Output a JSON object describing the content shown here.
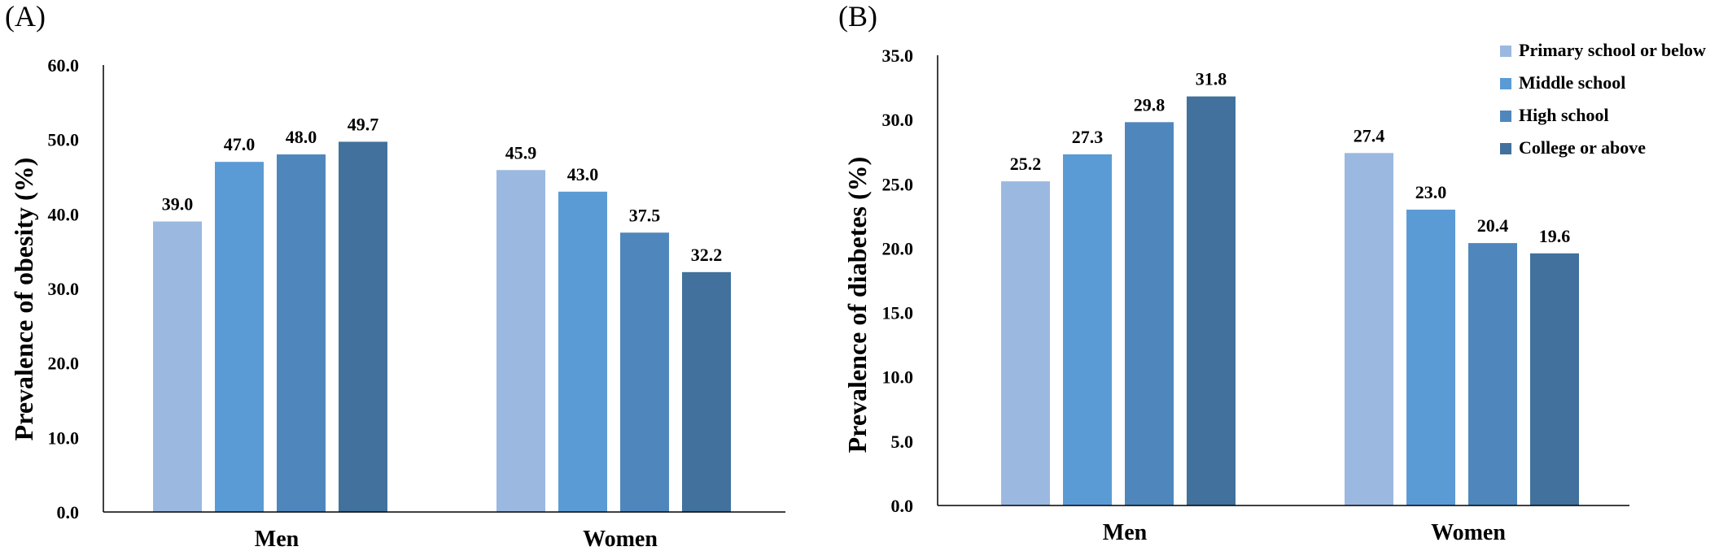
{
  "chart_data": [
    {
      "type": "bar",
      "panel_label": "(A)",
      "ylabel": "Prevalence of obesity (%)",
      "ylim": [
        0,
        60
      ],
      "yticks": [
        "0.0",
        "10.0",
        "20.0",
        "30.0",
        "40.0",
        "50.0",
        "60.0"
      ],
      "categories": [
        "Men",
        "Women"
      ],
      "grid": false,
      "series": [
        {
          "name": "Primary school or below",
          "color": "#9bb9e0",
          "values": [
            39.0,
            45.9
          ],
          "labels": [
            "39.0",
            "45.9"
          ]
        },
        {
          "name": "Middle school",
          "color": "#5b9bd5",
          "values": [
            47.0,
            43.0
          ],
          "labels": [
            "47.0",
            "43.0"
          ]
        },
        {
          "name": "High school",
          "color": "#4f87bd",
          "values": [
            48.0,
            37.5
          ],
          "labels": [
            "48.0",
            "37.5"
          ]
        },
        {
          "name": "College or above",
          "color": "#41719c",
          "values": [
            49.7,
            32.2
          ],
          "labels": [
            "49.7",
            "32.2"
          ]
        }
      ]
    },
    {
      "type": "bar",
      "panel_label": "(B)",
      "ylabel": "Prevalence of diabetes (%)",
      "ylim": [
        0,
        35
      ],
      "yticks": [
        "0.0",
        "5.0",
        "10.0",
        "15.0",
        "20.0",
        "25.0",
        "30.0",
        "35.0"
      ],
      "categories": [
        "Men",
        "Women"
      ],
      "grid": false,
      "legend_position": "top-right",
      "series": [
        {
          "name": "Primary school or below",
          "color": "#9bb9e0",
          "values": [
            25.2,
            27.4
          ],
          "labels": [
            "25.2",
            "27.4"
          ]
        },
        {
          "name": "Middle school",
          "color": "#5b9bd5",
          "values": [
            27.3,
            23.0
          ],
          "labels": [
            "27.3",
            "23.0"
          ]
        },
        {
          "name": "High school",
          "color": "#4f87bd",
          "values": [
            29.8,
            20.4
          ],
          "labels": [
            "29.8",
            "20.4"
          ]
        },
        {
          "name": "College or above",
          "color": "#41719c",
          "values": [
            31.8,
            19.6
          ],
          "labels": [
            "31.8",
            "19.6"
          ]
        }
      ]
    }
  ]
}
